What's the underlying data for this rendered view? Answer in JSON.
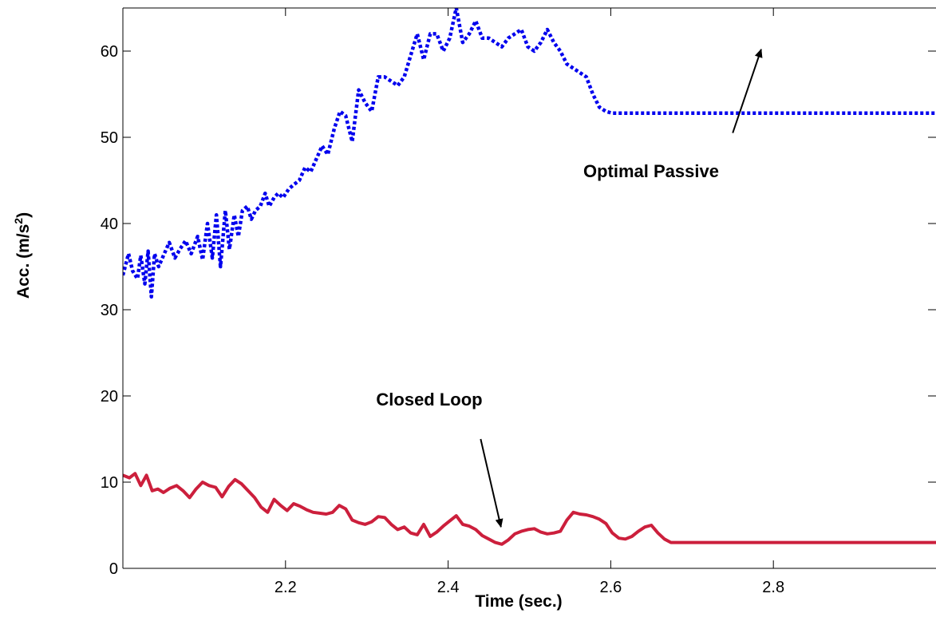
{
  "chart_data": {
    "type": "line",
    "title": "",
    "xlabel": "Time (sec.)",
    "ylabel_main": "Acc. (m/s",
    "ylabel_sup": "2",
    "ylabel_close": ")",
    "xlim": [
      2.0,
      3.0
    ],
    "ylim": [
      0,
      65
    ],
    "x_ticks": [
      2.2,
      2.4,
      2.6,
      2.8
    ],
    "x_tick_labels": [
      "2.2",
      "2.4",
      "2.6",
      "2.8"
    ],
    "y_ticks": [
      0,
      10,
      20,
      30,
      40,
      50,
      60
    ],
    "y_tick_labels": [
      "0",
      "10",
      "20",
      "30",
      "40",
      "50",
      "60"
    ],
    "grid": false,
    "legend": "none",
    "series": [
      {
        "color": "#0000ee",
        "style": "dotted",
        "x": [
          2.0,
          2.007,
          2.012,
          2.018,
          2.022,
          2.027,
          2.031,
          2.035,
          2.039,
          2.044,
          2.05,
          2.057,
          2.064,
          2.07,
          2.077,
          2.084,
          2.092,
          2.098,
          2.104,
          2.11,
          2.115,
          2.12,
          2.126,
          2.131,
          2.137,
          2.142,
          2.147,
          2.153,
          2.158,
          2.163,
          2.169,
          2.175,
          2.18,
          2.186,
          2.191,
          2.197,
          2.204,
          2.21,
          2.217,
          2.224,
          2.231,
          2.238,
          2.245,
          2.252,
          2.26,
          2.267,
          2.274,
          2.282,
          2.29,
          2.298,
          2.306,
          2.314,
          2.322,
          2.33,
          2.338,
          2.346,
          2.354,
          2.362,
          2.37,
          2.378,
          2.386,
          2.394,
          2.402,
          2.41,
          2.418,
          2.426,
          2.434,
          2.442,
          2.45,
          2.458,
          2.466,
          2.474,
          2.482,
          2.49,
          2.498,
          2.506,
          2.514,
          2.522,
          2.53,
          2.538,
          2.546,
          2.554,
          2.562,
          2.57,
          2.578,
          2.586,
          2.594,
          2.602,
          2.61,
          2.618,
          2.626,
          2.634,
          2.642,
          2.65,
          2.658,
          2.666,
          2.674,
          2.682,
          2.69,
          2.698,
          2.706,
          2.714,
          2.722,
          2.73,
          2.738,
          2.746,
          2.754,
          2.762,
          2.77,
          2.778,
          2.786,
          2.794,
          2.802,
          2.81,
          2.818,
          2.826,
          2.834,
          2.842,
          2.85,
          2.858,
          2.866,
          2.874,
          2.882,
          2.89,
          2.898,
          2.906,
          2.914,
          2.922,
          2.93,
          2.938,
          2.946,
          2.954,
          2.962,
          2.97,
          2.978,
          2.986,
          2.994,
          3.0
        ],
        "y": [
          34.0,
          36.5,
          34.5,
          33.6,
          36.3,
          33.0,
          36.8,
          31.5,
          36.5,
          35.0,
          36.3,
          37.8,
          36.0,
          37.0,
          38.0,
          36.5,
          38.5,
          35.8,
          40.0,
          36.0,
          41.0,
          35.0,
          41.5,
          37.0,
          41.0,
          38.5,
          41.5,
          42.0,
          40.5,
          41.5,
          42.0,
          43.5,
          42.0,
          43.0,
          43.5,
          43.0,
          44.0,
          44.5,
          45.0,
          46.5,
          46.0,
          47.5,
          49.0,
          48.0,
          51.0,
          53.0,
          52.5,
          49.5,
          55.5,
          54.0,
          53.0,
          57.0,
          57.0,
          56.5,
          56.0,
          57.0,
          59.5,
          62.0,
          59.0,
          62.0,
          62.0,
          60.0,
          61.5,
          65.0,
          61.0,
          62.0,
          63.5,
          61.5,
          61.5,
          61.0,
          60.5,
          61.5,
          62.0,
          62.5,
          60.5,
          60.0,
          61.0,
          62.5,
          61.0,
          60.0,
          58.5,
          58.0,
          57.5,
          57.0,
          55.0,
          53.5,
          53.0,
          52.8,
          52.8,
          52.8,
          52.8,
          52.8,
          52.8,
          52.8,
          52.8,
          52.8,
          52.8,
          52.8,
          52.8,
          52.8,
          52.8,
          52.8,
          52.8,
          52.8,
          52.8,
          52.8,
          52.8,
          52.8,
          52.8,
          52.8,
          52.8,
          52.8,
          52.8,
          52.8,
          52.8,
          52.8,
          52.8,
          52.8,
          52.8,
          52.8,
          52.8,
          52.8,
          52.8,
          52.8,
          52.8,
          52.8,
          52.8,
          52.8,
          52.8,
          52.8,
          52.8,
          52.8,
          52.8,
          52.8,
          52.8,
          52.8,
          52.8,
          52.8
        ]
      },
      {
        "color": "#cc1f3c",
        "style": "solid",
        "x": [
          2.0,
          2.008,
          2.015,
          2.022,
          2.029,
          2.036,
          2.043,
          2.05,
          2.058,
          2.066,
          2.074,
          2.082,
          2.09,
          2.098,
          2.106,
          2.114,
          2.122,
          2.13,
          2.138,
          2.146,
          2.154,
          2.162,
          2.17,
          2.178,
          2.186,
          2.194,
          2.202,
          2.21,
          2.218,
          2.226,
          2.234,
          2.242,
          2.25,
          2.258,
          2.266,
          2.274,
          2.282,
          2.29,
          2.298,
          2.306,
          2.314,
          2.322,
          2.33,
          2.338,
          2.346,
          2.354,
          2.362,
          2.37,
          2.378,
          2.386,
          2.394,
          2.402,
          2.41,
          2.418,
          2.426,
          2.434,
          2.442,
          2.45,
          2.458,
          2.466,
          2.474,
          2.482,
          2.49,
          2.498,
          2.506,
          2.514,
          2.522,
          2.53,
          2.538,
          2.546,
          2.554,
          2.562,
          2.57,
          2.578,
          2.586,
          2.594,
          2.602,
          2.61,
          2.618,
          2.626,
          2.634,
          2.642,
          2.65,
          2.658,
          2.666,
          2.674,
          2.682,
          2.69,
          2.698,
          2.706,
          2.714,
          2.722,
          2.73,
          2.738,
          2.746,
          2.754,
          2.762,
          2.77,
          2.778,
          2.786,
          2.794,
          2.802,
          2.81,
          2.818,
          2.826,
          2.834,
          2.842,
          2.85,
          2.858,
          2.866,
          2.874,
          2.882,
          2.89,
          2.898,
          2.906,
          2.914,
          2.922,
          2.93,
          2.938,
          2.946,
          2.954,
          2.962,
          2.97,
          2.978,
          2.986,
          2.994,
          3.0
        ],
        "y": [
          10.8,
          10.5,
          11.0,
          9.6,
          10.8,
          9.0,
          9.2,
          8.8,
          9.3,
          9.6,
          9.0,
          8.2,
          9.2,
          10.0,
          9.6,
          9.4,
          8.3,
          9.5,
          10.3,
          9.8,
          9.0,
          8.2,
          7.1,
          6.5,
          8.0,
          7.3,
          6.7,
          7.5,
          7.2,
          6.8,
          6.5,
          6.4,
          6.3,
          6.5,
          7.3,
          6.9,
          5.6,
          5.3,
          5.1,
          5.4,
          6.0,
          5.9,
          5.1,
          4.5,
          4.8,
          4.1,
          3.9,
          5.1,
          3.7,
          4.2,
          4.9,
          5.5,
          6.1,
          5.1,
          4.9,
          4.5,
          3.8,
          3.4,
          3.0,
          2.8,
          3.3,
          4.0,
          4.3,
          4.5,
          4.6,
          4.2,
          4.0,
          4.1,
          4.3,
          5.6,
          6.5,
          6.3,
          6.2,
          6.0,
          5.7,
          5.2,
          4.1,
          3.5,
          3.4,
          3.7,
          4.3,
          4.8,
          5.0,
          4.1,
          3.4,
          3.0,
          3.0,
          3.0,
          3.0,
          3.0,
          3.0,
          3.0,
          3.0,
          3.0,
          3.0,
          3.0,
          3.0,
          3.0,
          3.0,
          3.0,
          3.0,
          3.0,
          3.0,
          3.0,
          3.0,
          3.0,
          3.0,
          3.0,
          3.0,
          3.0,
          3.0,
          3.0,
          3.0,
          3.0,
          3.0,
          3.0,
          3.0,
          3.0,
          3.0,
          3.0,
          3.0,
          3.0,
          3.0,
          3.0,
          3.0,
          3.0,
          3.0
        ]
      }
    ],
    "annotations": [
      {
        "text": "Optimal Passive",
        "arrow_from": [
          2.75,
          50.5
        ],
        "arrow_to": [
          2.785,
          60.2
        ]
      },
      {
        "text": "Closed Loop",
        "arrow_from": [
          2.44,
          15.0
        ],
        "arrow_to": [
          2.465,
          4.8
        ]
      }
    ]
  }
}
